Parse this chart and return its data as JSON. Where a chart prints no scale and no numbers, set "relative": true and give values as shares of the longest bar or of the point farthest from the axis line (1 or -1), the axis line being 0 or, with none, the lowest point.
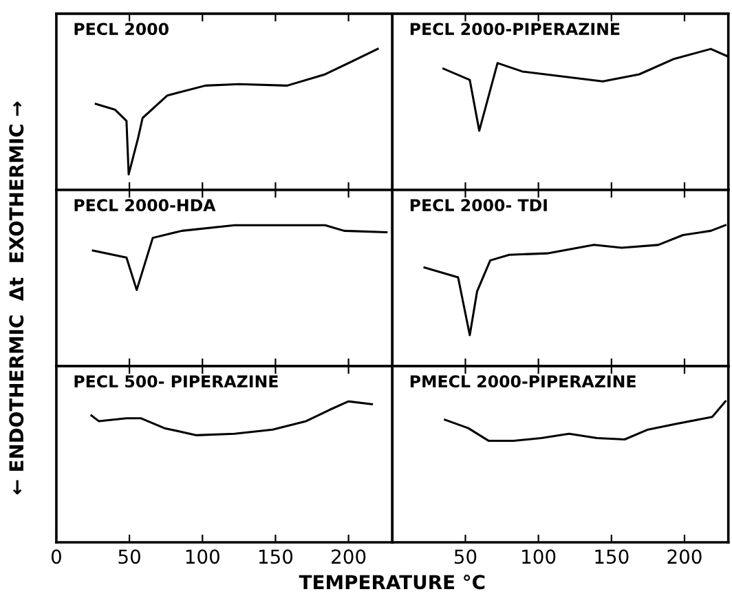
{
  "chart_data": [
    {
      "type": "line",
      "title": "PECL 2000",
      "relative": true,
      "tick_labels": false,
      "xlim": [
        0,
        230
      ],
      "xticks": [
        50,
        100,
        150,
        200
      ],
      "grid": false,
      "series": [
        {
          "color": "#000000",
          "x": [
            27,
            40,
            48,
            49.5,
            56,
            59,
            76,
            102,
            125,
            158,
            184,
            220
          ],
          "values": [
            0.61,
            0.57,
            0.49,
            0.11,
            0.37,
            0.51,
            0.67,
            0.74,
            0.75,
            0.74,
            0.82,
            1
          ]
        }
      ]
    },
    {
      "type": "line",
      "title": "PECL 2000-PIPERAZINE",
      "relative": true,
      "tick_labels": false,
      "xlim": [
        0,
        230
      ],
      "xticks": [
        50,
        100,
        150,
        200
      ],
      "grid": false,
      "series": [
        {
          "color": "#000000",
          "x": [
            35,
            53,
            59.5,
            72,
            89,
            144,
            169,
            193,
            218,
            229
          ],
          "values": [
            0.86,
            0.78,
            0.42,
            0.9,
            0.84,
            0.77,
            0.82,
            0.93,
            1,
            0.95
          ]
        }
      ]
    },
    {
      "type": "line",
      "title": "PECL 2000-HDA",
      "ylabel": "← ENDOTHERMIC  Δt  EXOTHERMIC →",
      "relative": true,
      "tick_labels": false,
      "xlim": [
        0,
        230
      ],
      "xticks": [
        50,
        100,
        150,
        200
      ],
      "grid": false,
      "series": [
        {
          "color": "#000000",
          "x": [
            25,
            48,
            55,
            66,
            86,
            122,
            184,
            197,
            226
          ],
          "values": [
            0.82,
            0.77,
            0.54,
            0.91,
            0.96,
            1,
            1,
            0.96,
            0.95
          ]
        }
      ]
    },
    {
      "type": "line",
      "title": "PECL 2000- TDI",
      "relative": true,
      "tick_labels": false,
      "xlim": [
        0,
        230
      ],
      "xticks": [
        50,
        100,
        150,
        200
      ],
      "grid": false,
      "series": [
        {
          "color": "#000000",
          "x": [
            22,
            45,
            53,
            58,
            67,
            80,
            106,
            138,
            157,
            182,
            199,
            218,
            228
          ],
          "values": [
            0.7,
            0.63,
            0.22,
            0.53,
            0.75,
            0.79,
            0.8,
            0.86,
            0.84,
            0.86,
            0.93,
            0.96,
            1
          ]
        }
      ]
    },
    {
      "type": "line",
      "title": "PECL 500- PIPERAZINE",
      "xlabel": "TEMPERATURE °C",
      "relative": true,
      "tick_labels": "x",
      "xlim": [
        0,
        230
      ],
      "xticks": [
        0,
        50,
        100,
        150,
        200
      ],
      "grid": false,
      "series": [
        {
          "color": "#000000",
          "x": [
            24,
            29,
            48,
            58,
            74,
            96,
            122,
            148,
            171,
            187,
            200,
            216
          ],
          "values": [
            0.9,
            0.86,
            0.88,
            0.88,
            0.81,
            0.76,
            0.77,
            0.8,
            0.86,
            0.94,
            1,
            0.98
          ]
        }
      ]
    },
    {
      "type": "line",
      "title": "PMECL 2000-PIPERAZINE",
      "relative": true,
      "tick_labels": "x",
      "xlim": [
        0,
        230
      ],
      "xticks": [
        50,
        100,
        150,
        200
      ],
      "grid": false,
      "series": [
        {
          "color": "#000000",
          "x": [
            36,
            52,
            66,
            83,
            102,
            121,
            140,
            159,
            175,
            194,
            219,
            228
          ],
          "values": [
            0.87,
            0.81,
            0.72,
            0.72,
            0.74,
            0.77,
            0.74,
            0.73,
            0.8,
            0.84,
            0.89,
            1
          ]
        }
      ]
    }
  ]
}
